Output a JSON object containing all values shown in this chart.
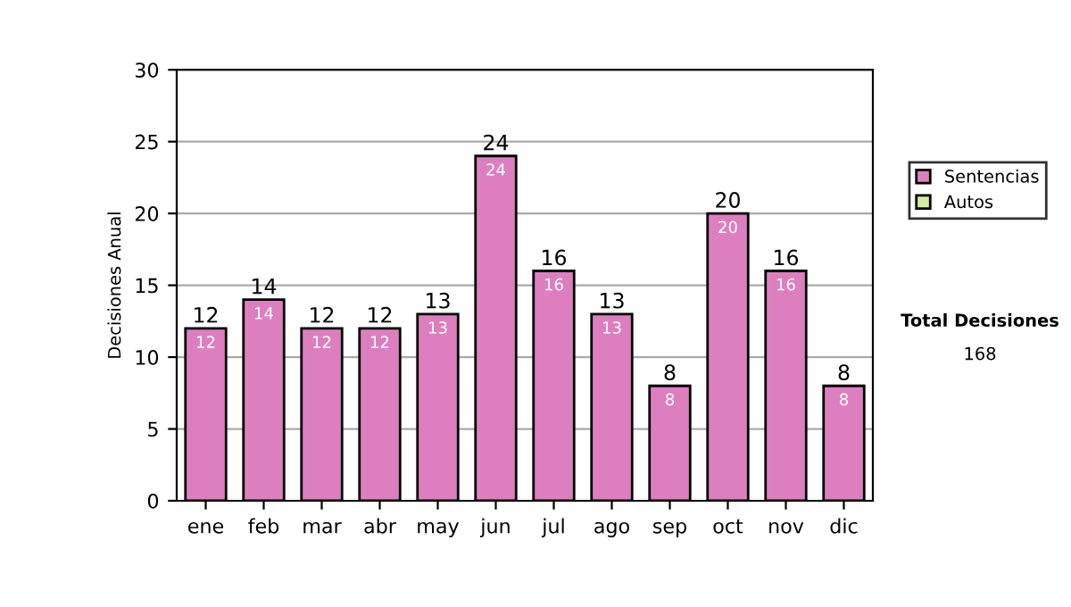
{
  "chart_data": {
    "type": "bar",
    "stacked": true,
    "ylabel": "Decisiones Anual",
    "categories": [
      "ene",
      "feb",
      "mar",
      "abr",
      "may",
      "jun",
      "jul",
      "ago",
      "sep",
      "oct",
      "nov",
      "dic"
    ],
    "series": [
      {
        "name": "Sentencias",
        "color": "#dd7fbf",
        "values": [
          12,
          14,
          12,
          12,
          13,
          24,
          16,
          13,
          8,
          20,
          16,
          8
        ],
        "value_labels": [
          "12",
          "14",
          "12",
          "12",
          "13",
          "24",
          "16",
          "13",
          "8",
          "20",
          "16",
          "8"
        ]
      },
      {
        "name": "Autos",
        "color": "#d4ec9c",
        "values": [
          0,
          0,
          0,
          0,
          0,
          0,
          0,
          0,
          0,
          0,
          0,
          0
        ]
      }
    ],
    "totals": [
      "12",
      "14",
      "12",
      "12",
      "13",
      "24",
      "16",
      "13",
      "8",
      "20",
      "16",
      "8"
    ],
    "ylim": [
      0,
      30
    ],
    "yticks": [
      0,
      5,
      10,
      15,
      20,
      25,
      30
    ],
    "grid": "y",
    "legend": "right",
    "annotations": [
      "Total Decisiones",
      "168"
    ]
  }
}
